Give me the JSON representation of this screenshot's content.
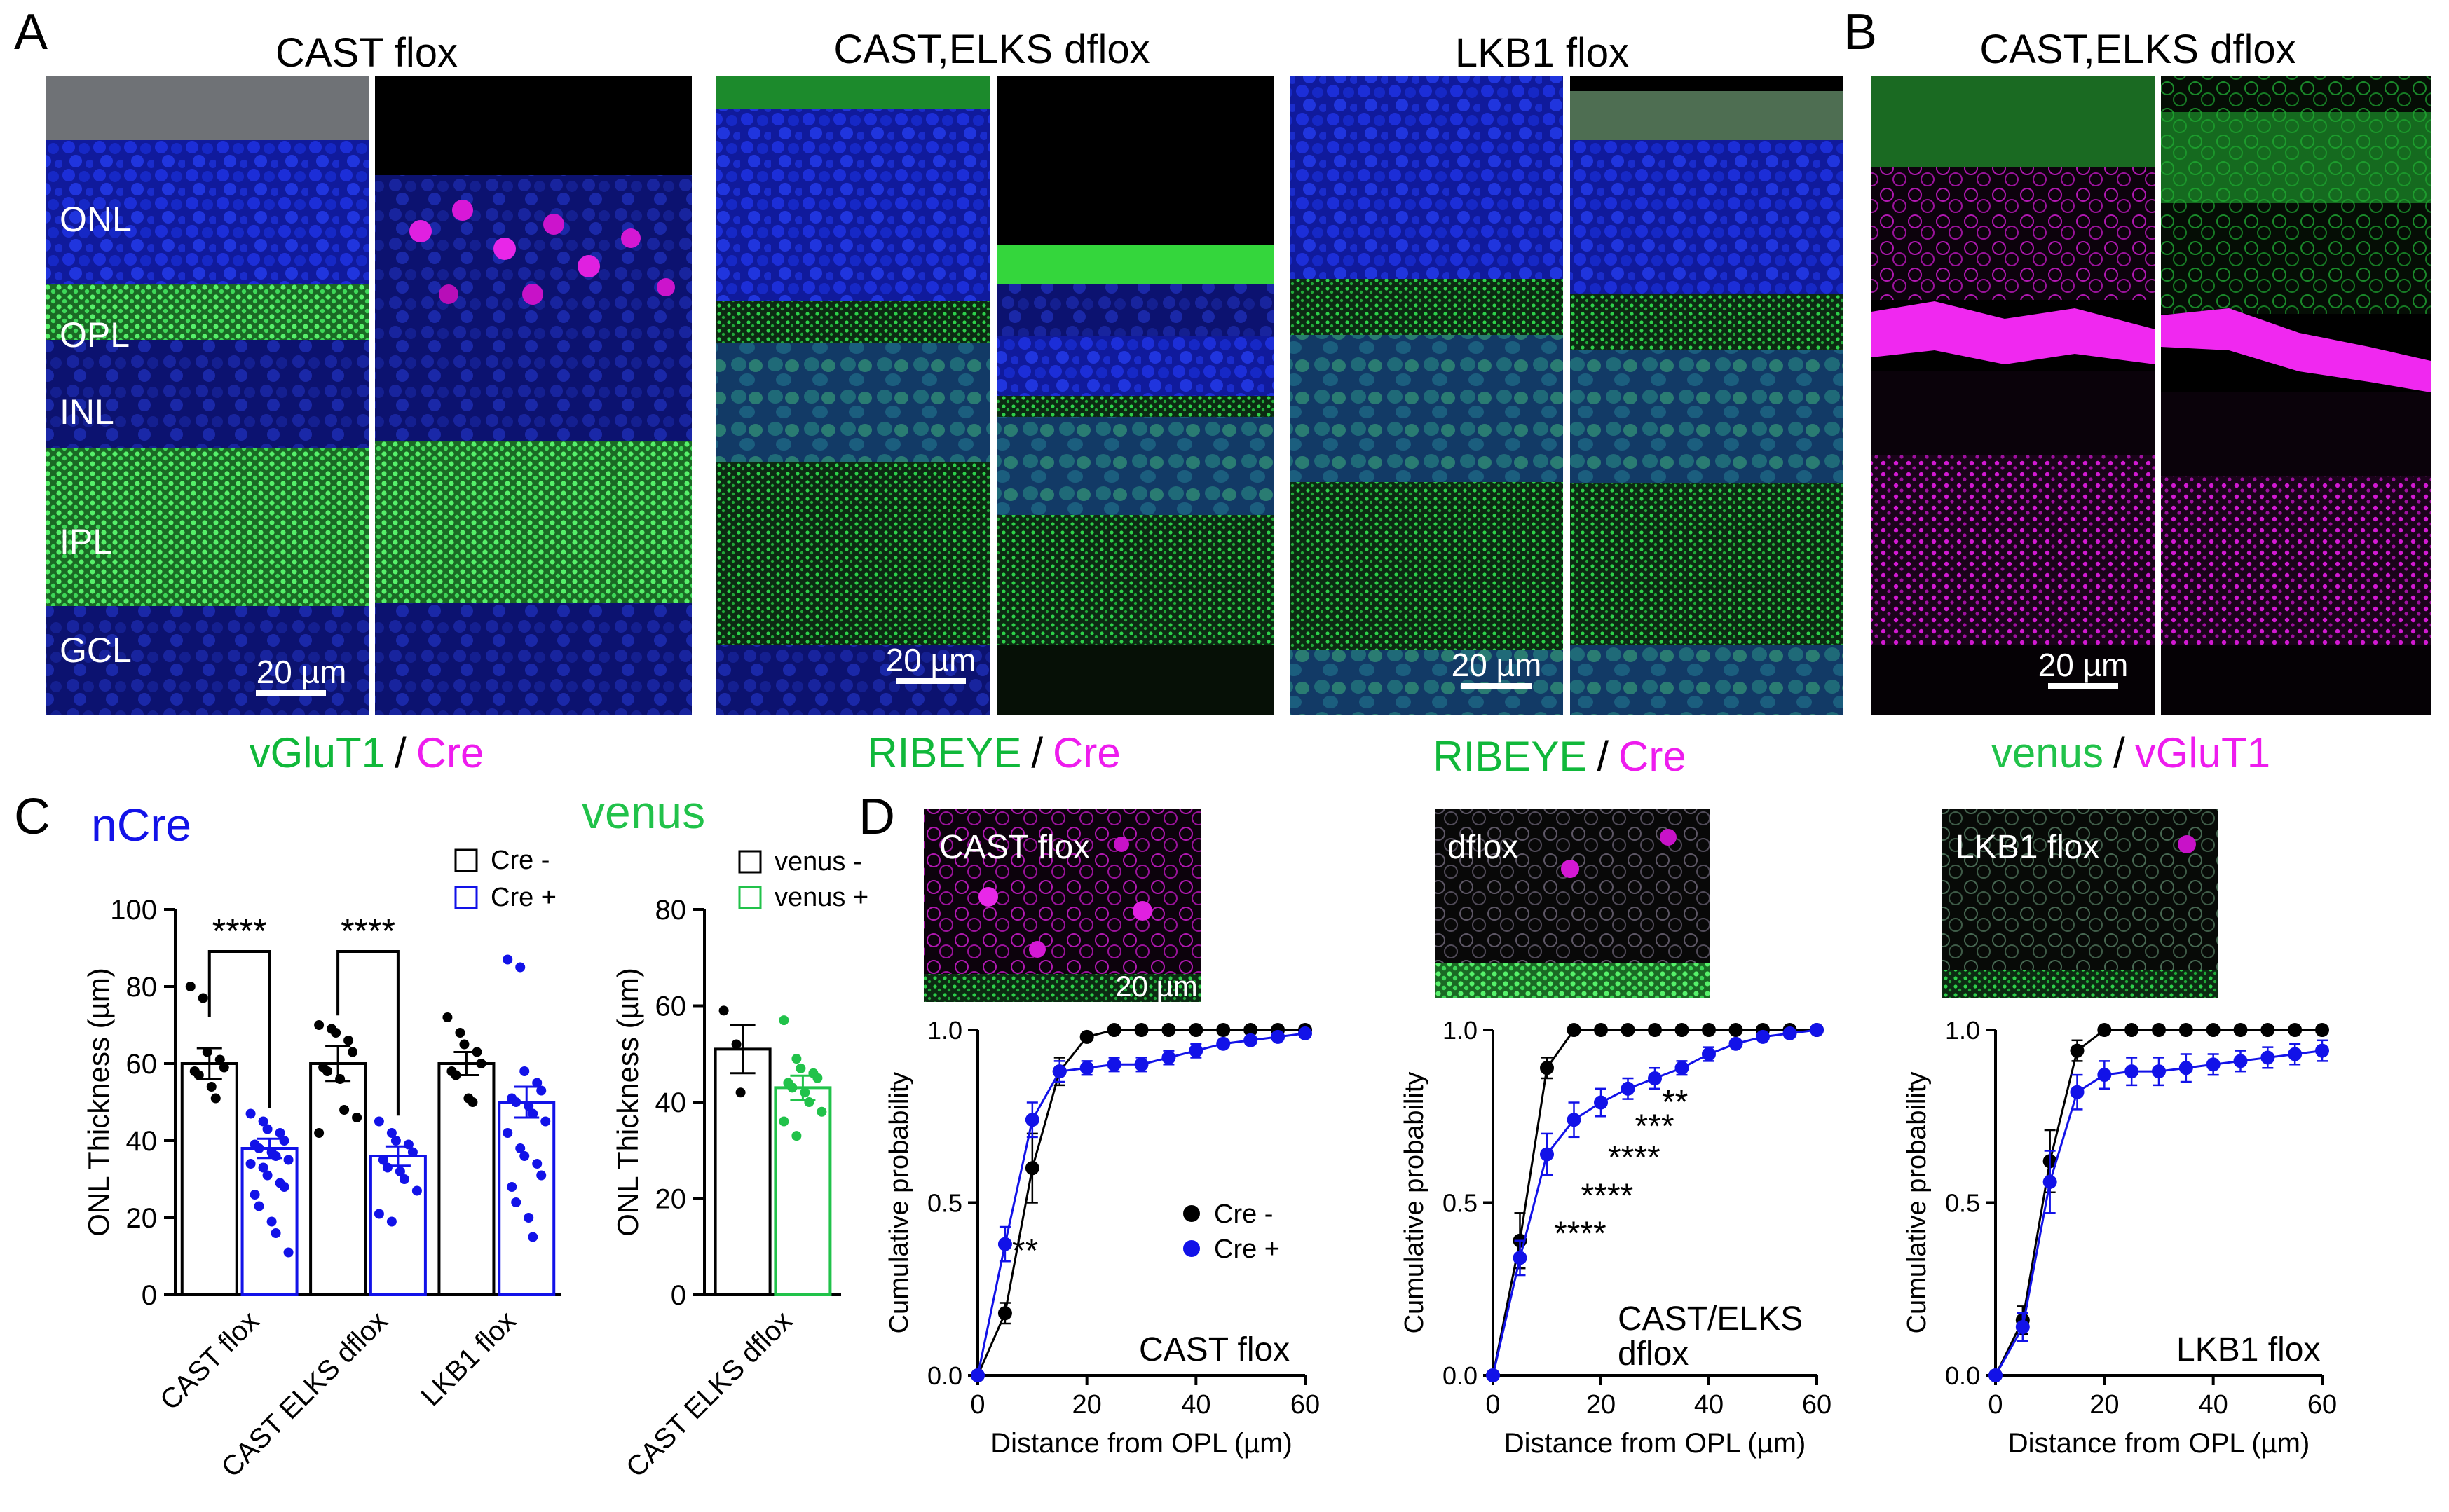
{
  "panel_letters": [
    "A",
    "B",
    "C",
    "D"
  ],
  "colors": {
    "green": "#10b83a",
    "magenta": "#ee1cee",
    "blue": "#1212e8",
    "venus_green": "#21c24a",
    "black": "#000000"
  },
  "panel_a": {
    "groups": [
      {
        "title": "CAST flox",
        "channels": [
          "vGluT1",
          "Cre"
        ],
        "scale_bar": "20 µm"
      },
      {
        "title": "CAST,ELKS dflox",
        "channels": [
          "RIBEYE",
          "Cre"
        ],
        "scale_bar": "20 µm"
      },
      {
        "title": "LKB1 flox",
        "channels": [
          "RIBEYE",
          "Cre"
        ],
        "scale_bar": "20 µm"
      }
    ],
    "layers": [
      "ONL",
      "OPL",
      "INL",
      "IPL",
      "GCL"
    ],
    "separator": "/"
  },
  "panel_b": {
    "title": "CAST,ELKS dflox",
    "channels": [
      "venus",
      "vGluT1"
    ],
    "scale_bar": "20 µm",
    "separator": "/"
  },
  "panel_c": {
    "ncre_title": "nCre",
    "venus_title": "venus",
    "legend_ncre": [
      "Cre -",
      "Cre +"
    ],
    "legend_venus": [
      "venus -",
      "venus +"
    ]
  },
  "panel_d": {
    "image_labels": [
      "CAST flox",
      "dflox",
      "LKB1 flox"
    ],
    "image_scale_bar": "20 µm",
    "legend": [
      "Cre -",
      "Cre +"
    ],
    "plot_labels": [
      "CAST flox",
      "CAST/ELKS",
      "dflox",
      "LKB1 flox"
    ]
  },
  "chart_data": [
    {
      "type": "bar",
      "id": "C-ncre",
      "title": "",
      "ylabel": "ONL Thickness (µm)",
      "categories": [
        "CAST flox",
        "CAST ELKS dflox",
        "LKB1 flox"
      ],
      "series": [
        {
          "name": "Cre -",
          "values": [
            60,
            60,
            60
          ],
          "sem": [
            4,
            4.5,
            3
          ]
        },
        {
          "name": "Cre +",
          "values": [
            38,
            36,
            50
          ],
          "sem": [
            2.5,
            2.5,
            4
          ]
        }
      ],
      "yticks": [
        0,
        20,
        40,
        60,
        80,
        100
      ],
      "ylim": [
        0,
        100
      ],
      "significance": [
        {
          "category": "CAST flox",
          "label": "****"
        },
        {
          "category": "CAST ELKS dflox",
          "label": "****"
        }
      ],
      "points": {
        "Cre -": [
          [
            80,
            77,
            63,
            61,
            59,
            58,
            57,
            54,
            51
          ],
          [
            70,
            69,
            68,
            66,
            63,
            59,
            58,
            56,
            48,
            46,
            42
          ],
          [
            72,
            68,
            65,
            63,
            60,
            58,
            57,
            51,
            50
          ]
        ],
        "Cre +": [
          [
            47,
            45,
            43,
            42,
            40,
            39,
            38,
            37,
            36,
            35,
            34,
            33,
            31,
            29,
            28,
            26,
            23,
            19,
            16,
            11
          ],
          [
            45,
            42,
            40,
            39,
            37,
            35,
            33,
            32,
            30,
            27,
            21,
            19
          ],
          [
            87,
            85,
            58,
            55,
            53,
            51,
            50,
            49,
            47,
            45,
            42,
            38,
            36,
            34,
            31,
            28,
            24,
            20,
            15
          ]
        ]
      }
    },
    {
      "type": "bar",
      "id": "C-venus",
      "title": "",
      "ylabel": "ONL Thickness (µm)",
      "categories": [
        "CAST ELKS dflox"
      ],
      "series": [
        {
          "name": "venus -",
          "values": [
            51
          ],
          "sem": [
            5
          ]
        },
        {
          "name": "venus +",
          "values": [
            43
          ],
          "sem": [
            2.5
          ]
        }
      ],
      "yticks": [
        0,
        20,
        40,
        60,
        80
      ],
      "ylim": [
        0,
        80
      ],
      "points": {
        "venus -": [
          [
            59,
            52,
            42
          ]
        ],
        "venus +": [
          [
            57,
            49,
            47,
            46,
            45,
            44,
            43,
            42,
            40,
            38,
            36,
            33
          ]
        ]
      }
    },
    {
      "type": "line",
      "id": "D-cast",
      "xlabel": "Distance from OPL (µm)",
      "ylabel": "Cumulative probability",
      "x": [
        0,
        5,
        10,
        15,
        20,
        25,
        30,
        35,
        40,
        45,
        50,
        55,
        60
      ],
      "xticks": [
        0,
        20,
        40,
        60
      ],
      "yticks": [
        0.0,
        0.5,
        1.0
      ],
      "xlim": [
        0,
        60
      ],
      "ylim": [
        0,
        1
      ],
      "series": [
        {
          "name": "Cre -",
          "values": [
            0,
            0.18,
            0.6,
            0.88,
            0.98,
            1,
            1,
            1,
            1,
            1,
            1,
            1,
            1
          ],
          "err": [
            0,
            0.03,
            0.1,
            0.04,
            0.01,
            0,
            0,
            0,
            0,
            0,
            0,
            0,
            0
          ]
        },
        {
          "name": "Cre +",
          "values": [
            0,
            0.38,
            0.74,
            0.88,
            0.89,
            0.9,
            0.9,
            0.92,
            0.94,
            0.96,
            0.97,
            0.98,
            0.99
          ],
          "err": [
            0,
            0.05,
            0.05,
            0.03,
            0.02,
            0.02,
            0.02,
            0.02,
            0.02,
            0.01,
            0.01,
            0.01,
            0
          ]
        }
      ],
      "annotations": [
        {
          "x": 5,
          "y": 0.45,
          "label": "**"
        }
      ]
    },
    {
      "type": "line",
      "id": "D-dflox",
      "xlabel": "Distance from OPL (µm)",
      "ylabel": "Cumulative probability",
      "x": [
        0,
        5,
        10,
        15,
        20,
        25,
        30,
        35,
        40,
        45,
        50,
        55,
        60
      ],
      "xticks": [
        0,
        20,
        40,
        60
      ],
      "yticks": [
        0.0,
        0.5,
        1.0
      ],
      "xlim": [
        0,
        60
      ],
      "ylim": [
        0,
        1
      ],
      "series": [
        {
          "name": "Cre -",
          "values": [
            0,
            0.39,
            0.89,
            1,
            1,
            1,
            1,
            1,
            1,
            1,
            1,
            1,
            1
          ],
          "err": [
            0,
            0.08,
            0.03,
            0,
            0,
            0,
            0,
            0,
            0,
            0,
            0,
            0,
            0
          ]
        },
        {
          "name": "Cre +",
          "values": [
            0,
            0.34,
            0.64,
            0.74,
            0.79,
            0.83,
            0.86,
            0.89,
            0.93,
            0.96,
            0.98,
            0.99,
            1
          ],
          "err": [
            0,
            0.05,
            0.06,
            0.05,
            0.04,
            0.03,
            0.03,
            0.02,
            0.02,
            0.01,
            0.01,
            0.01,
            0
          ]
        }
      ],
      "annotations": [
        {
          "x": 10,
          "y": 0.5,
          "label": "****"
        },
        {
          "x": 15,
          "y": 0.61,
          "label": "****"
        },
        {
          "x": 20,
          "y": 0.72,
          "label": "****"
        },
        {
          "x": 25,
          "y": 0.81,
          "label": "***"
        },
        {
          "x": 30,
          "y": 0.88,
          "label": "**"
        }
      ]
    },
    {
      "type": "line",
      "id": "D-lkb1",
      "xlabel": "Distance from OPL (µm)",
      "ylabel": "Cumulative probability",
      "x": [
        0,
        5,
        10,
        15,
        20,
        25,
        30,
        35,
        40,
        45,
        50,
        55,
        60
      ],
      "xticks": [
        0,
        20,
        40,
        60
      ],
      "yticks": [
        0.0,
        0.5,
        1.0
      ],
      "xlim": [
        0,
        60
      ],
      "ylim": [
        0,
        1
      ],
      "series": [
        {
          "name": "Cre -",
          "values": [
            0,
            0.16,
            0.62,
            0.94,
            1,
            1,
            1,
            1,
            1,
            1,
            1,
            1,
            1
          ],
          "err": [
            0,
            0.04,
            0.09,
            0.03,
            0,
            0,
            0,
            0,
            0,
            0,
            0,
            0,
            0
          ]
        },
        {
          "name": "Cre +",
          "values": [
            0,
            0.14,
            0.56,
            0.82,
            0.87,
            0.88,
            0.88,
            0.89,
            0.9,
            0.91,
            0.92,
            0.93,
            0.94
          ],
          "err": [
            0,
            0.04,
            0.09,
            0.05,
            0.04,
            0.04,
            0.04,
            0.04,
            0.03,
            0.03,
            0.03,
            0.03,
            0.03
          ]
        }
      ]
    }
  ]
}
